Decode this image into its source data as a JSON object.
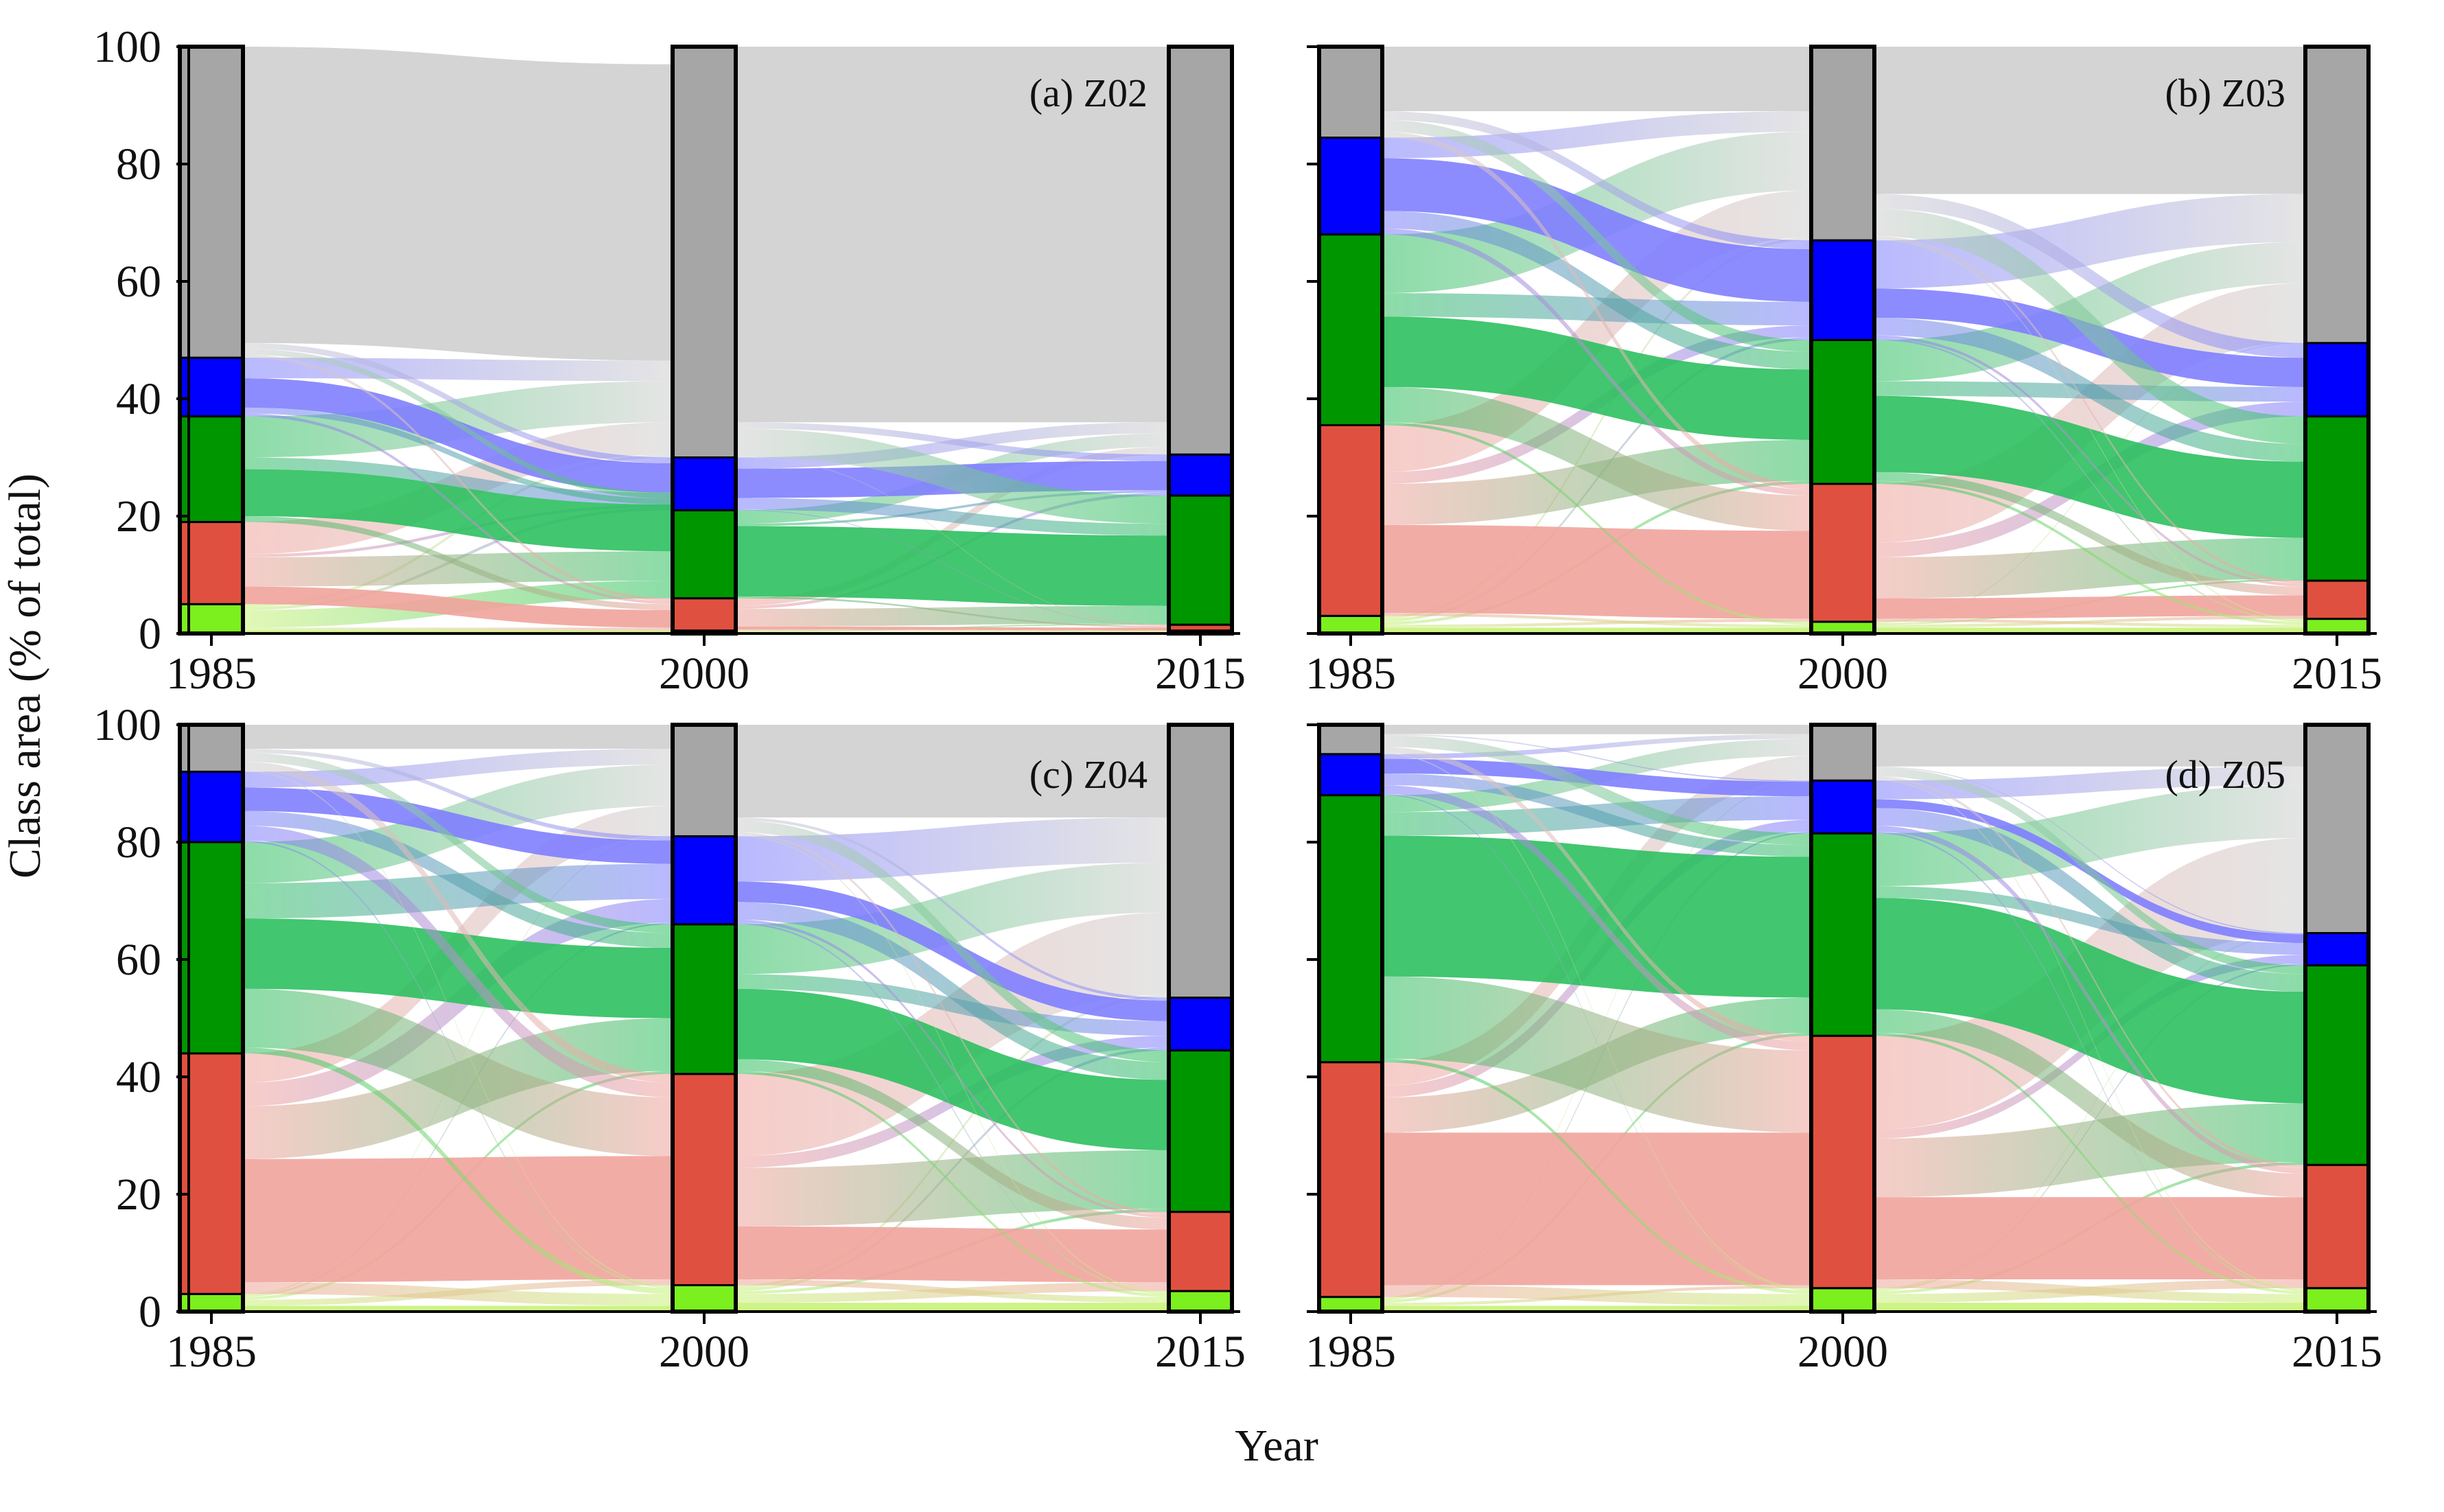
{
  "chart_data": {
    "type": "alluvial",
    "ylabel": "Class area (% of total)",
    "xlabel": "Year",
    "ylim": [
      0,
      100
    ],
    "yticks": [
      0,
      20,
      40,
      60,
      80,
      100
    ],
    "years": [
      "1985",
      "2000",
      "2015"
    ],
    "classes": [
      {
        "name": "light-green",
        "color": "#7cf01e",
        "flow_color": "#c8f27a"
      },
      {
        "name": "red",
        "color": "#e05040",
        "flow_color": "#f0a39c"
      },
      {
        "name": "green",
        "color": "#009600",
        "flow_color": "#2dc060"
      },
      {
        "name": "blue",
        "color": "#0000ff",
        "flow_color": "#7f7fff"
      },
      {
        "name": "gray",
        "color": "#a6a6a6",
        "flow_color": "#cfcfcf"
      }
    ],
    "panels": [
      {
        "label": "(a) Z02",
        "stacks": [
          [
            5,
            14,
            18,
            10,
            53
          ],
          [
            0.5,
            5.5,
            15,
            9,
            70
          ],
          [
            0.5,
            1,
            22,
            7,
            69.5
          ]
        ],
        "flows": [
          [
            [
              0.5,
              0.5,
              3,
              0.5,
              0.5
            ],
            [
              0,
              3,
              5,
              0.5,
              5.5
            ],
            [
              0,
              1,
              8,
              2,
              7
            ],
            [
              0,
              0.5,
              1,
              5,
              3.5
            ],
            [
              0,
              0.5,
              1,
              1,
              50.5
            ]
          ],
          [
            [
              0.3,
              0,
              0.2,
              0,
              0
            ],
            [
              0.2,
              0.5,
              3,
              0.5,
              1.3
            ],
            [
              0,
              0.3,
              12,
              0.4,
              2.3
            ],
            [
              0,
              0.1,
              2,
              5,
              1.9
            ],
            [
              0,
              0.1,
              4.8,
              1.1,
              64
            ]
          ]
        ]
      },
      {
        "label": "(b) Z03",
        "stacks": [
          [
            3,
            32.5,
            32.5,
            16.5,
            15.5
          ],
          [
            2,
            23.5,
            24.5,
            17,
            33
          ],
          [
            2.5,
            6.5,
            28,
            12.5,
            50.5
          ]
        ],
        "flows": [
          [
            [
              1,
              0.5,
              0.5,
              0.5,
              0.5
            ],
            [
              0.5,
              15,
              7,
              2,
              8
            ],
            [
              0.5,
              6,
              12,
              4,
              10
            ],
            [
              0,
              1,
              3,
              9,
              3.5
            ],
            [
              0,
              1,
              2,
              1.5,
              11
            ]
          ],
          [
            [
              1,
              0.5,
              0.3,
              0,
              0.2
            ],
            [
              0.5,
              3.5,
              7,
              2.5,
              10
            ],
            [
              0.5,
              1.5,
              13,
              2.5,
              7
            ],
            [
              0.3,
              0.5,
              3,
              5,
              8.2
            ],
            [
              0.2,
              0.5,
              4.7,
              2.5,
              25.1
            ]
          ]
        ]
      },
      {
        "label": "(c) Z04",
        "stacks": [
          [
            3,
            41,
            36,
            12,
            8
          ],
          [
            4.5,
            36,
            25.5,
            15,
            19
          ],
          [
            3.5,
            13.5,
            27.5,
            9,
            46.5
          ]
        ],
        "flows": [
          [
            [
              1,
              1,
              0.5,
              0.3,
              0.2
            ],
            [
              2,
              21,
              9,
              4,
              5
            ],
            [
              1,
              10,
              12,
              6,
              7
            ],
            [
              0.3,
              2.5,
              2.5,
              4,
              2.7
            ],
            [
              0.2,
              1.5,
              1.5,
              0.7,
              4.1
            ]
          ],
          [
            [
              1.5,
              1.5,
              0.5,
              0.5,
              0.5
            ],
            [
              1,
              9,
              10,
              2,
              14
            ],
            [
              0.5,
              2,
              12,
              2.5,
              8.5
            ],
            [
              0.3,
              0.5,
              3,
              3.5,
              7.7
            ],
            [
              0.2,
              0.5,
              2,
              0.5,
              15.8
            ]
          ]
        ]
      },
      {
        "label": "(d) Z05",
        "stacks": [
          [
            2.5,
            40,
            45.5,
            7,
            5
          ],
          [
            4,
            43,
            34.5,
            9,
            9.5
          ],
          [
            4,
            21,
            34,
            5.5,
            35.5
          ]
        ],
        "flows": [
          [
            [
              1,
              0.5,
              0.5,
              0.3,
              0.2
            ],
            [
              2,
              26,
              6,
              2,
              4
            ],
            [
              0.6,
              14,
              24,
              4,
              2.9
            ],
            [
              0.2,
              1.5,
              2,
              2.5,
              0.8
            ],
            [
              0.2,
              1,
              2,
              0.2,
              1.6
            ]
          ],
          [
            [
              1.5,
              1.5,
              0.5,
              0.3,
              0.2
            ],
            [
              1.5,
              14,
              10,
              1.5,
              16
            ],
            [
              0.5,
              4,
              19,
              2,
              9
            ],
            [
              0.3,
              1,
              3,
              1.5,
              3.2
            ],
            [
              0.2,
              0.5,
              1.5,
              0.2,
              7.1
            ]
          ]
        ]
      }
    ]
  }
}
